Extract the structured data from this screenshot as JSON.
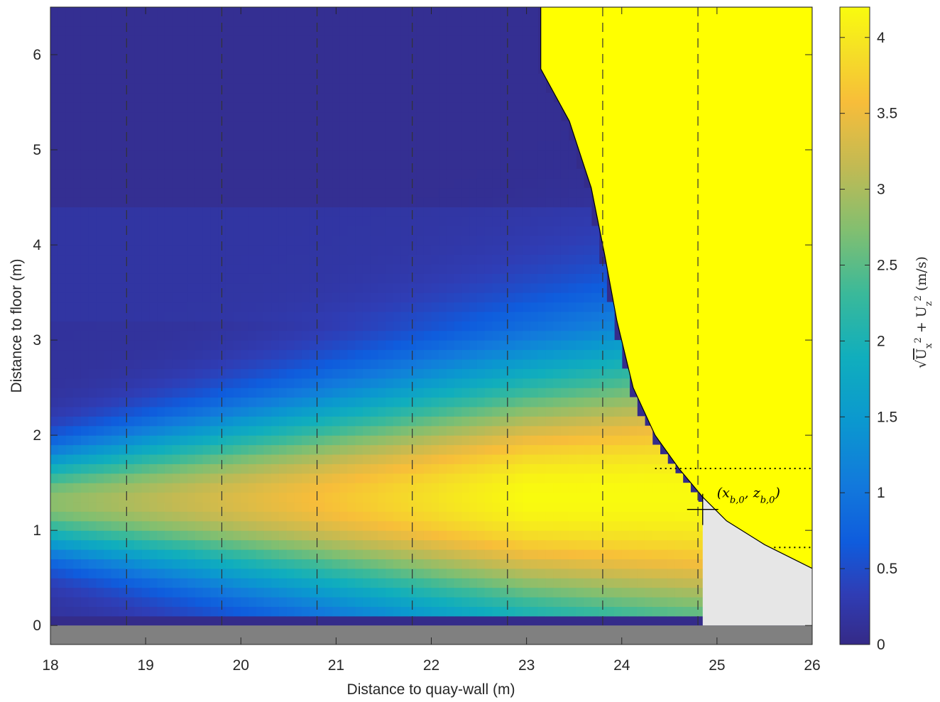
{
  "chart_data": {
    "type": "heatmap",
    "xlabel": "Distance to quay-wall (m)",
    "ylabel": "Distance to floor (m)",
    "xlim": [
      18,
      26
    ],
    "ylim": [
      -0.2,
      6.5
    ],
    "x_ticks": [
      "18",
      "19",
      "20",
      "21",
      "22",
      "23",
      "24",
      "25",
      "26"
    ],
    "y_ticks": [
      "0",
      "1",
      "2",
      "3",
      "4",
      "5",
      "6"
    ],
    "colorbar": {
      "label": "√(U_x² + U_z²) (m/s)",
      "range": [
        0,
        4.2
      ],
      "ticks": [
        "0",
        "0.5",
        "1",
        "1.5",
        "2",
        "2.5",
        "3",
        "3.5",
        "4"
      ],
      "colormap": "parula"
    },
    "jet": {
      "core_height_m": 1.3,
      "core_peak_velocity_ms": 4.2,
      "start_velocity_ms": 2.8,
      "end_x_m": 24.85
    },
    "vertical_profile_lines_x": [
      18.8,
      19.8,
      20.8,
      21.8,
      22.8,
      23.8,
      24.8
    ],
    "horizontal_dotted_lines_y": [
      1.65,
      0.82
    ],
    "annotation": {
      "text": "(x_b,0, z_b,0)",
      "x": 24.85,
      "y": 1.22
    },
    "hull_outline": [
      [
        23.15,
        6.5
      ],
      [
        23.15,
        5.85
      ],
      [
        23.45,
        5.3
      ],
      [
        23.68,
        4.6
      ],
      [
        23.82,
        3.9
      ],
      [
        23.95,
        3.2
      ],
      [
        24.12,
        2.5
      ],
      [
        24.35,
        2.0
      ],
      [
        24.6,
        1.65
      ],
      [
        24.85,
        1.35
      ],
      [
        25.1,
        1.1
      ],
      [
        25.5,
        0.85
      ],
      [
        26.0,
        0.6
      ]
    ],
    "colors": {
      "low": "#352a87",
      "mid": "#11b1c4",
      "high": "#f9fb0e",
      "floor": "#808080",
      "shadow": "#e6e6e6"
    }
  }
}
